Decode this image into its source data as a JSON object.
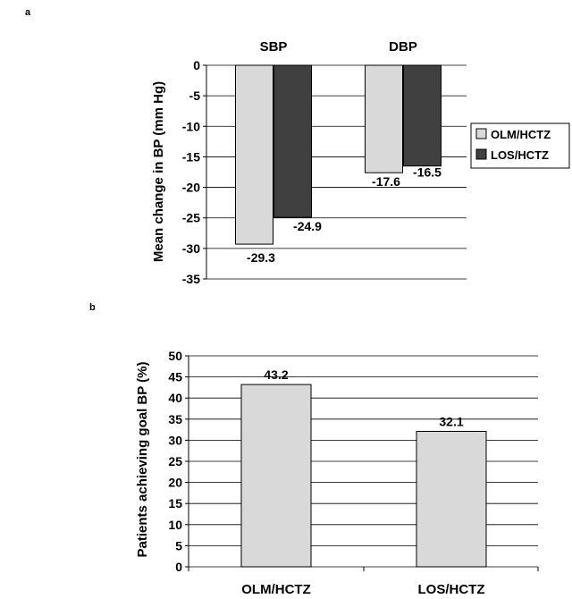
{
  "panels": {
    "a": "a",
    "b": "b"
  },
  "colors": {
    "olm": "#d9d9d9",
    "los": "#404040",
    "grid": "#000000",
    "background": "#ffffff"
  },
  "chart_data": [
    {
      "type": "bar",
      "panel": "a",
      "categories": [
        "SBP",
        "DBP"
      ],
      "series": [
        {
          "name": "OLM/HCTZ",
          "values": [
            -29.3,
            -17.6
          ]
        },
        {
          "name": "LOS/HCTZ",
          "values": [
            -24.9,
            -16.5
          ]
        }
      ],
      "data_labels": [
        [
          "-29.3",
          "-24.9"
        ],
        [
          "-17.6",
          "-16.5"
        ]
      ],
      "ylabel": "Mean change in BP (mm Hg)",
      "ylim": [
        -35,
        0
      ],
      "yticks": [
        "0",
        "-5",
        "-10",
        "-15",
        "-20",
        "-25",
        "-30",
        "-35"
      ],
      "ytick_values": [
        0,
        -5,
        -10,
        -15,
        -20,
        -25,
        -30,
        -35
      ],
      "grid": true,
      "legend": "right",
      "category_labels_position": "top"
    },
    {
      "type": "bar",
      "panel": "b",
      "categories": [
        "OLM/HCTZ",
        "LOS/HCTZ"
      ],
      "values": [
        43.2,
        32.1
      ],
      "data_labels": [
        "43.2",
        "32.1"
      ],
      "ylabel": "Patients achieving goal BP (%)",
      "ylim": [
        0,
        50
      ],
      "yticks": [
        "0",
        "5",
        "10",
        "15",
        "20",
        "25",
        "30",
        "35",
        "40",
        "45",
        "50"
      ],
      "ytick_values": [
        0,
        5,
        10,
        15,
        20,
        25,
        30,
        35,
        40,
        45,
        50
      ],
      "grid": true,
      "legend": "none"
    }
  ]
}
